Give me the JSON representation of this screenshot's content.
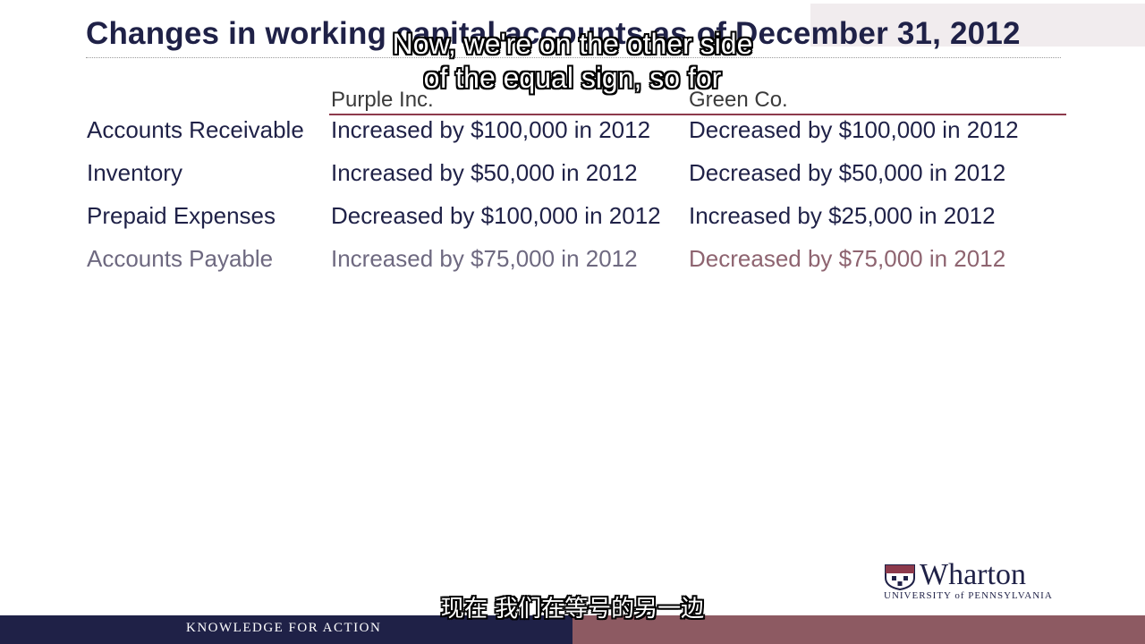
{
  "slide": {
    "title": "Changes in working capital accounts as of December 31, 2012",
    "columns": [
      "Purple Inc.",
      "Green Co."
    ],
    "rows": [
      {
        "label": "Accounts Receivable",
        "purple": "Increased by $100,000 in 2012",
        "green": "Decreased by $100,000 in 2012"
      },
      {
        "label": "Inventory",
        "purple": "Increased by $50,000 in 2012",
        "green": "Decreased by $50,000 in 2012"
      },
      {
        "label": "Prepaid Expenses",
        "purple": "Decreased by $100,000 in 2012",
        "green": "Increased by $25,000 in 2012"
      },
      {
        "label": "Accounts Payable",
        "purple": "Increased by $75,000 in 2012",
        "green": "Decreased by $75,000 in 2012"
      }
    ]
  },
  "captions": {
    "en_line1": "Now, we're on the other side",
    "en_line2": "of the equal sign, so for",
    "zh": "现在 我们在等号的另一边"
  },
  "logo": {
    "name": "Wharton",
    "subtitle": "UNIVERSITY of PENNSYLVANIA"
  },
  "footer": {
    "tagline": "KNOWLEDGE FOR ACTION"
  },
  "colors": {
    "navy": "#1f2147",
    "accent": "#8d3a4c",
    "footer_red": "#8d5a62"
  }
}
